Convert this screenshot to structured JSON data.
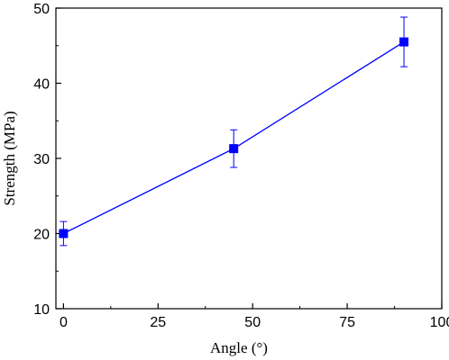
{
  "chart_data": {
    "type": "line",
    "xlabel": "Angle (°)",
    "ylabel": "Strength (MPa)",
    "xlim": [
      -2,
      100
    ],
    "ylim": [
      10,
      50
    ],
    "xticks": [
      0,
      25,
      50,
      75,
      100
    ],
    "yticks": [
      10,
      20,
      30,
      40,
      50
    ],
    "grid": false,
    "series": [
      {
        "x": [
          0,
          45,
          90
        ],
        "y": [
          20.0,
          31.3,
          45.5
        ],
        "err": [
          1.6,
          2.5,
          3.3
        ],
        "marker": "square",
        "color": "#0000ff"
      }
    ]
  }
}
